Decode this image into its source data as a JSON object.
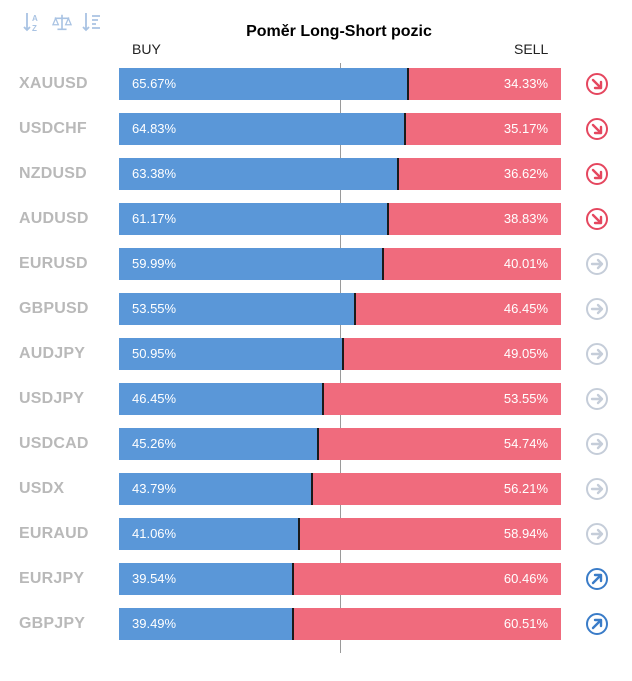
{
  "title": "Poměr Long-Short pozic",
  "header": {
    "buy": "BUY",
    "sell": "SELL"
  },
  "toolbar": [
    "sort-alpha-icon",
    "balance-scale-icon",
    "sort-list-icon"
  ],
  "colors": {
    "buy": "#5a97d8",
    "sell": "#f06b7d",
    "symbol": "#b9b9b9",
    "down": "#e5475f",
    "neutral": "#c5cdd9",
    "up": "#3a7cc8"
  },
  "rows": [
    {
      "symbol": "XAUUSD",
      "buy": 65.67,
      "buy_label": "65.67%",
      "sell_label": "34.33%",
      "trend": "down"
    },
    {
      "symbol": "USDCHF",
      "buy": 64.83,
      "buy_label": "64.83%",
      "sell_label": "35.17%",
      "trend": "down"
    },
    {
      "symbol": "NZDUSD",
      "buy": 63.38,
      "buy_label": "63.38%",
      "sell_label": "36.62%",
      "trend": "down"
    },
    {
      "symbol": "AUDUSD",
      "buy": 61.17,
      "buy_label": "61.17%",
      "sell_label": "38.83%",
      "trend": "down"
    },
    {
      "symbol": "EURUSD",
      "buy": 59.99,
      "buy_label": "59.99%",
      "sell_label": "40.01%",
      "trend": "neutral"
    },
    {
      "symbol": "GBPUSD",
      "buy": 53.55,
      "buy_label": "53.55%",
      "sell_label": "46.45%",
      "trend": "neutral"
    },
    {
      "symbol": "AUDJPY",
      "buy": 50.95,
      "buy_label": "50.95%",
      "sell_label": "49.05%",
      "trend": "neutral"
    },
    {
      "symbol": "USDJPY",
      "buy": 46.45,
      "buy_label": "46.45%",
      "sell_label": "53.55%",
      "trend": "neutral"
    },
    {
      "symbol": "USDCAD",
      "buy": 45.26,
      "buy_label": "45.26%",
      "sell_label": "54.74%",
      "trend": "neutral"
    },
    {
      "symbol": "USDX",
      "buy": 43.79,
      "buy_label": "43.79%",
      "sell_label": "56.21%",
      "trend": "neutral"
    },
    {
      "symbol": "EURAUD",
      "buy": 41.06,
      "buy_label": "41.06%",
      "sell_label": "58.94%",
      "trend": "neutral"
    },
    {
      "symbol": "EURJPY",
      "buy": 39.54,
      "buy_label": "39.54%",
      "sell_label": "60.46%",
      "trend": "up"
    },
    {
      "symbol": "GBPJPY",
      "buy": 39.49,
      "buy_label": "39.49%",
      "sell_label": "60.51%",
      "trend": "up"
    }
  ]
}
